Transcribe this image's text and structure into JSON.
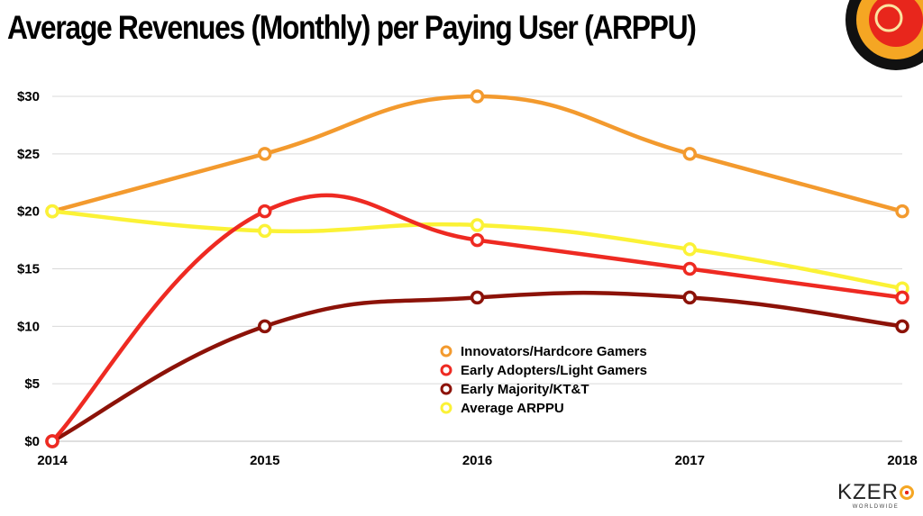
{
  "colors": {
    "innovators": "#f39a2e",
    "early_adopters": "#ee2a22",
    "early_majority": "#8c1208",
    "average": "#fbf236",
    "grid": "#d9d9d9"
  },
  "brand": {
    "name": "KZER",
    "sub": "WORLDWIDE"
  },
  "chart_data": {
    "type": "line",
    "title": "Average Revenues (Monthly) per Paying User (ARPPU)",
    "xlabel": "",
    "ylabel": "",
    "categories": [
      "2014",
      "2015",
      "2016",
      "2017",
      "2018"
    ],
    "y_ticks": [
      0,
      5,
      10,
      15,
      20,
      25,
      30
    ],
    "y_tick_labels": [
      "$0",
      "$5",
      "$10",
      "$15",
      "$20",
      "$25",
      "$30"
    ],
    "ylim": [
      0,
      30
    ],
    "grid": true,
    "legend_position": "center-bottom",
    "series": [
      {
        "name": "Innovators/Hardcore Gamers",
        "key": "innovators",
        "values": [
          20,
          25,
          30,
          25,
          20
        ]
      },
      {
        "name": "Early Adopters/Light Gamers",
        "key": "early_adopters",
        "values": [
          0,
          20,
          17.5,
          15,
          12.5
        ]
      },
      {
        "name": "Early Majority/KT&T",
        "key": "early_majority",
        "values": [
          0,
          10,
          12.5,
          12.5,
          10
        ]
      },
      {
        "name": "Average ARPPU",
        "key": "average",
        "values": [
          20,
          18.3,
          18.8,
          16.7,
          13.3
        ]
      }
    ]
  }
}
